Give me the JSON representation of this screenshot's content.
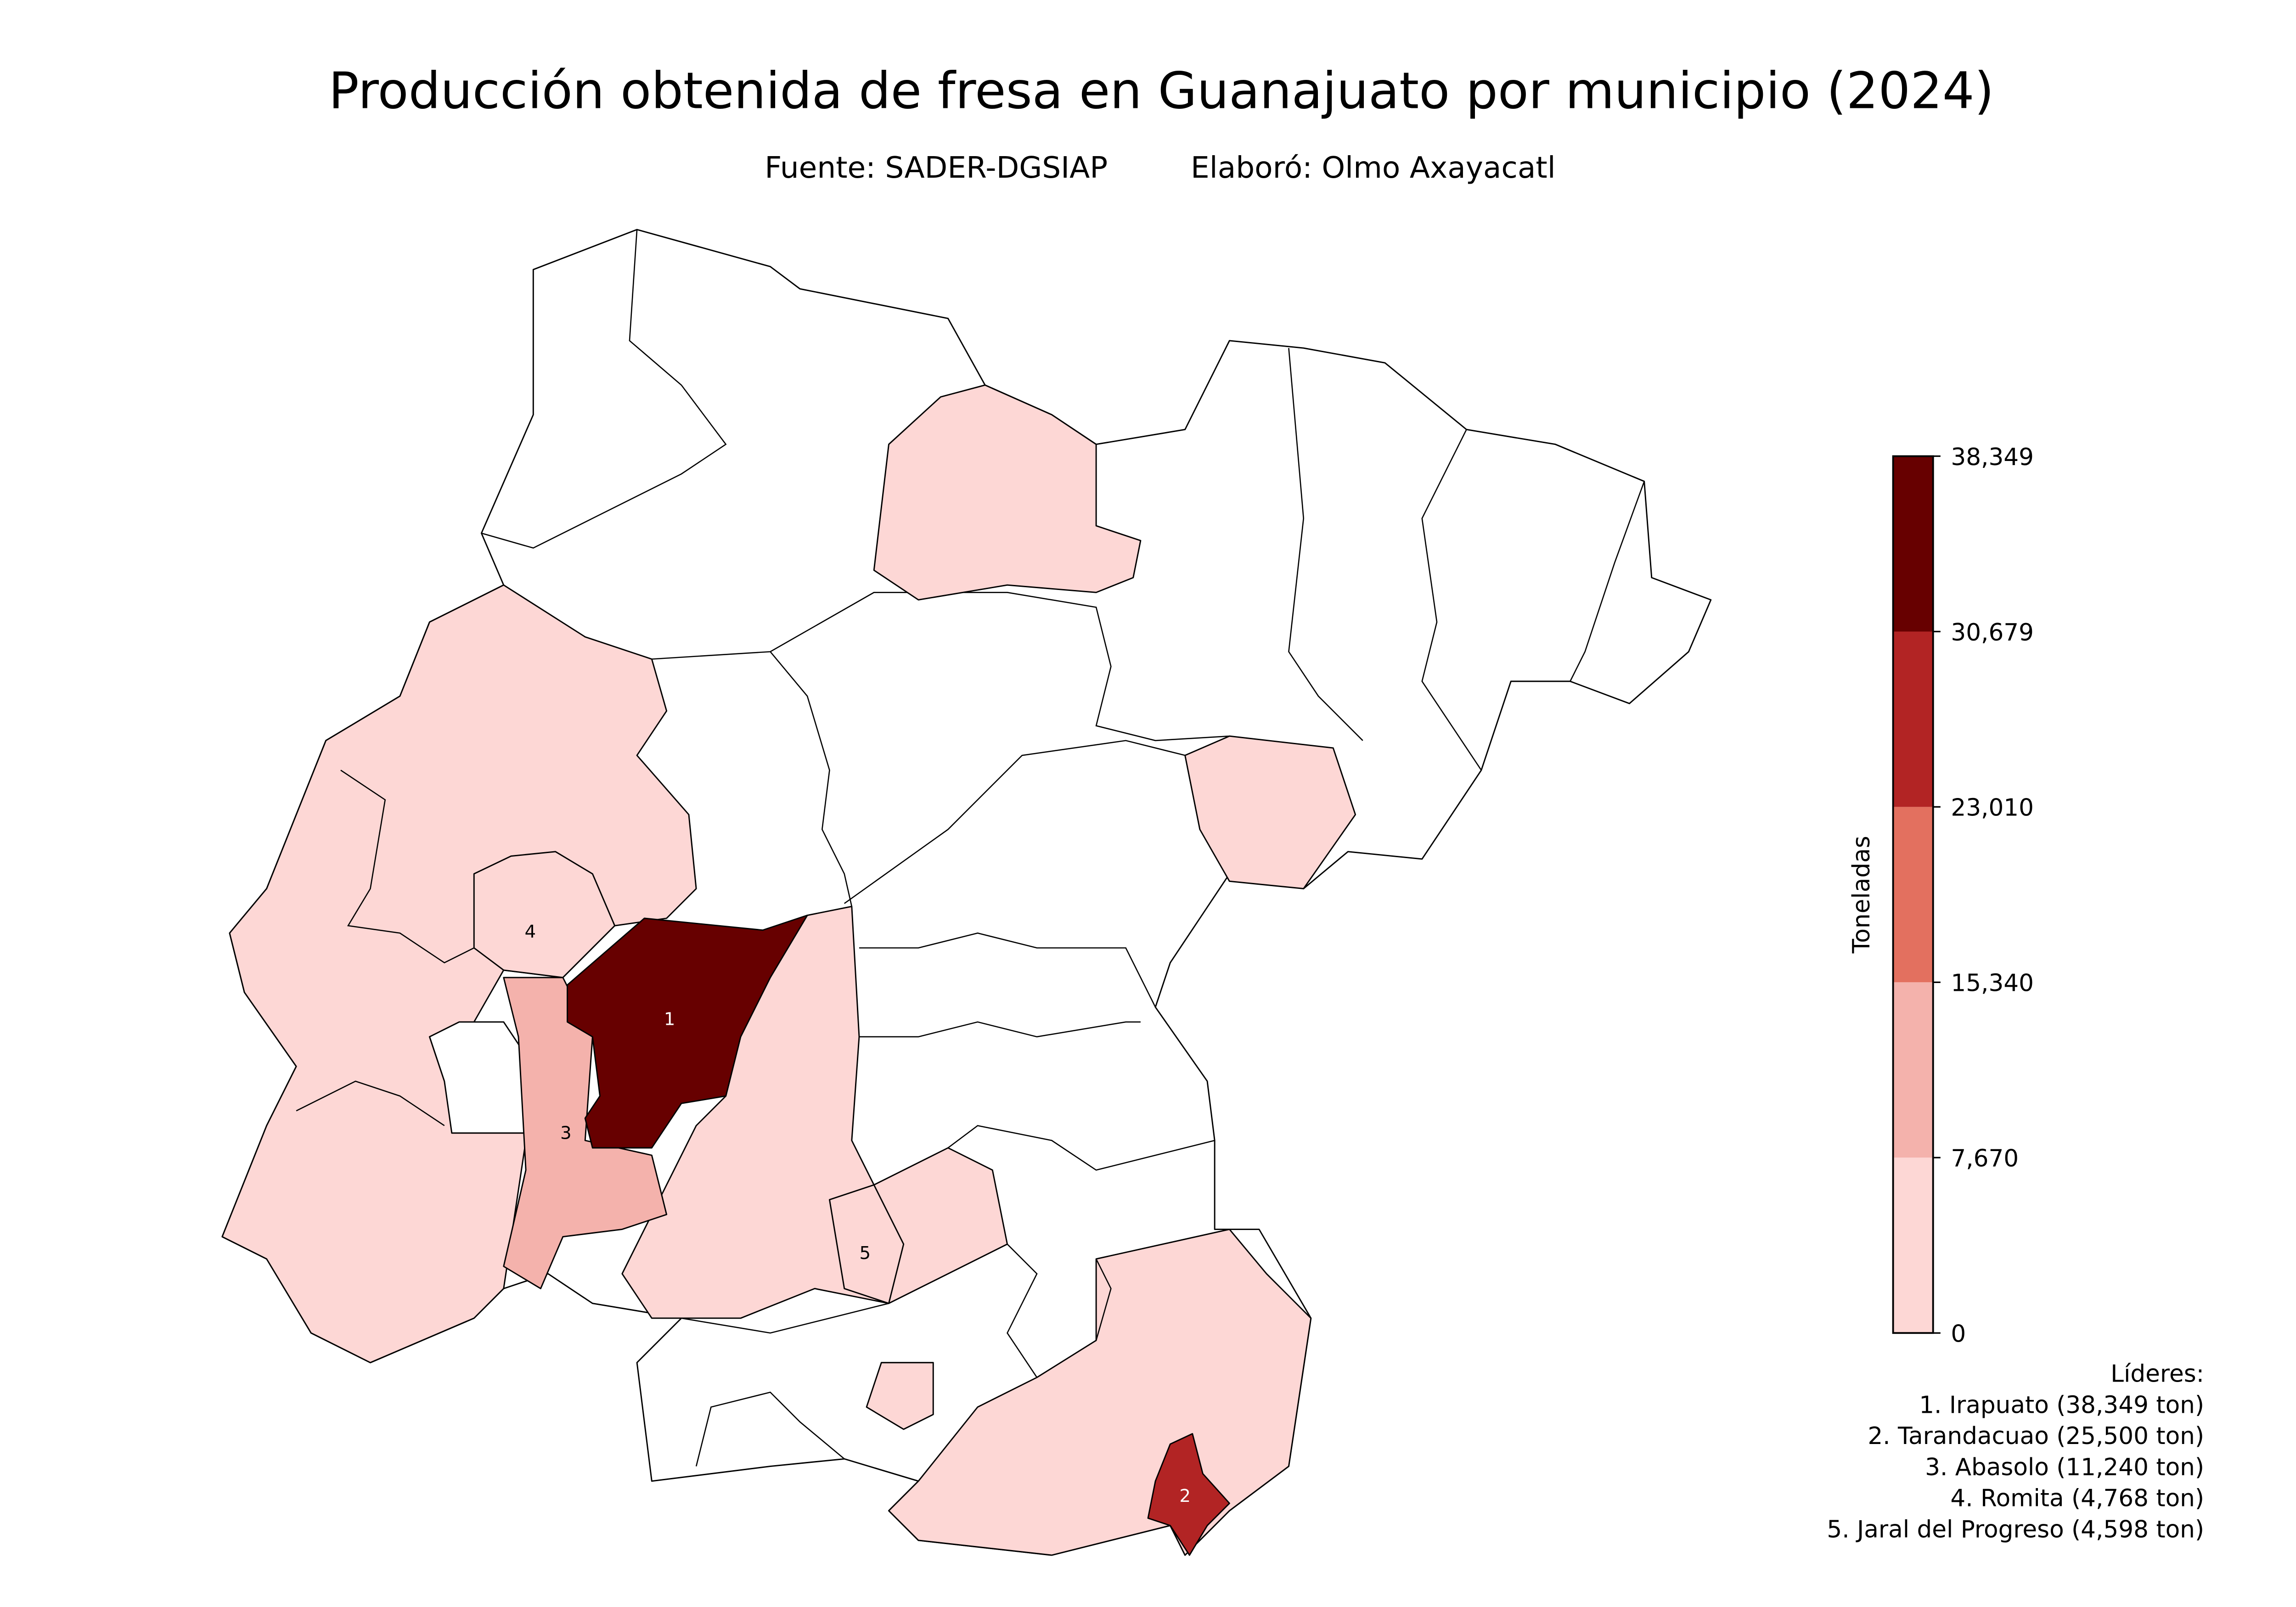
{
  "chart_data": {
    "type": "choropleth",
    "title": "Producción obtenida de fresa en Guanajuato por municipio (2024)",
    "subtitle": [
      "Fuente: SADER-DGSIAP",
      "Elaboró: Olmo Axayacatl"
    ],
    "colorbar": {
      "label": "Toneladas",
      "lim": [
        0,
        38349
      ],
      "ticks": [
        0,
        {
          "value": 7670,
          "label": "7,670"
        },
        {
          "value": 15340,
          "label": "15,340"
        },
        {
          "value": 23010,
          "label": "23,010"
        },
        {
          "value": 30679,
          "label": "30,679"
        },
        {
          "value": 38349,
          "label": "38,349"
        }
      ],
      "colors": [
        "#fdd7d5",
        "#f4b2ac",
        "#e3705f",
        "#b22424",
        "#670000"
      ]
    },
    "leaders_title": "Líderes:",
    "leaders": [
      {
        "rank": 1,
        "name": "Irapuato",
        "value": 38349,
        "label": "1. Irapuato (38,349 ton)"
      },
      {
        "rank": 2,
        "name": "Tarandacuao",
        "value": 25500,
        "label": "2. Tarandacuao (25,500 ton)"
      },
      {
        "rank": 3,
        "name": "Abasolo",
        "value": 11240,
        "label": "3. Abasolo (11,240 ton)"
      },
      {
        "rank": 4,
        "name": "Romita",
        "value": 4768,
        "label": "4. Romita (4,768 ton)"
      },
      {
        "rank": 5,
        "name": "Jaral del Progreso",
        "value": 4598,
        "label": "5. Jaral del Progreso (4,598 ton)"
      }
    ]
  }
}
